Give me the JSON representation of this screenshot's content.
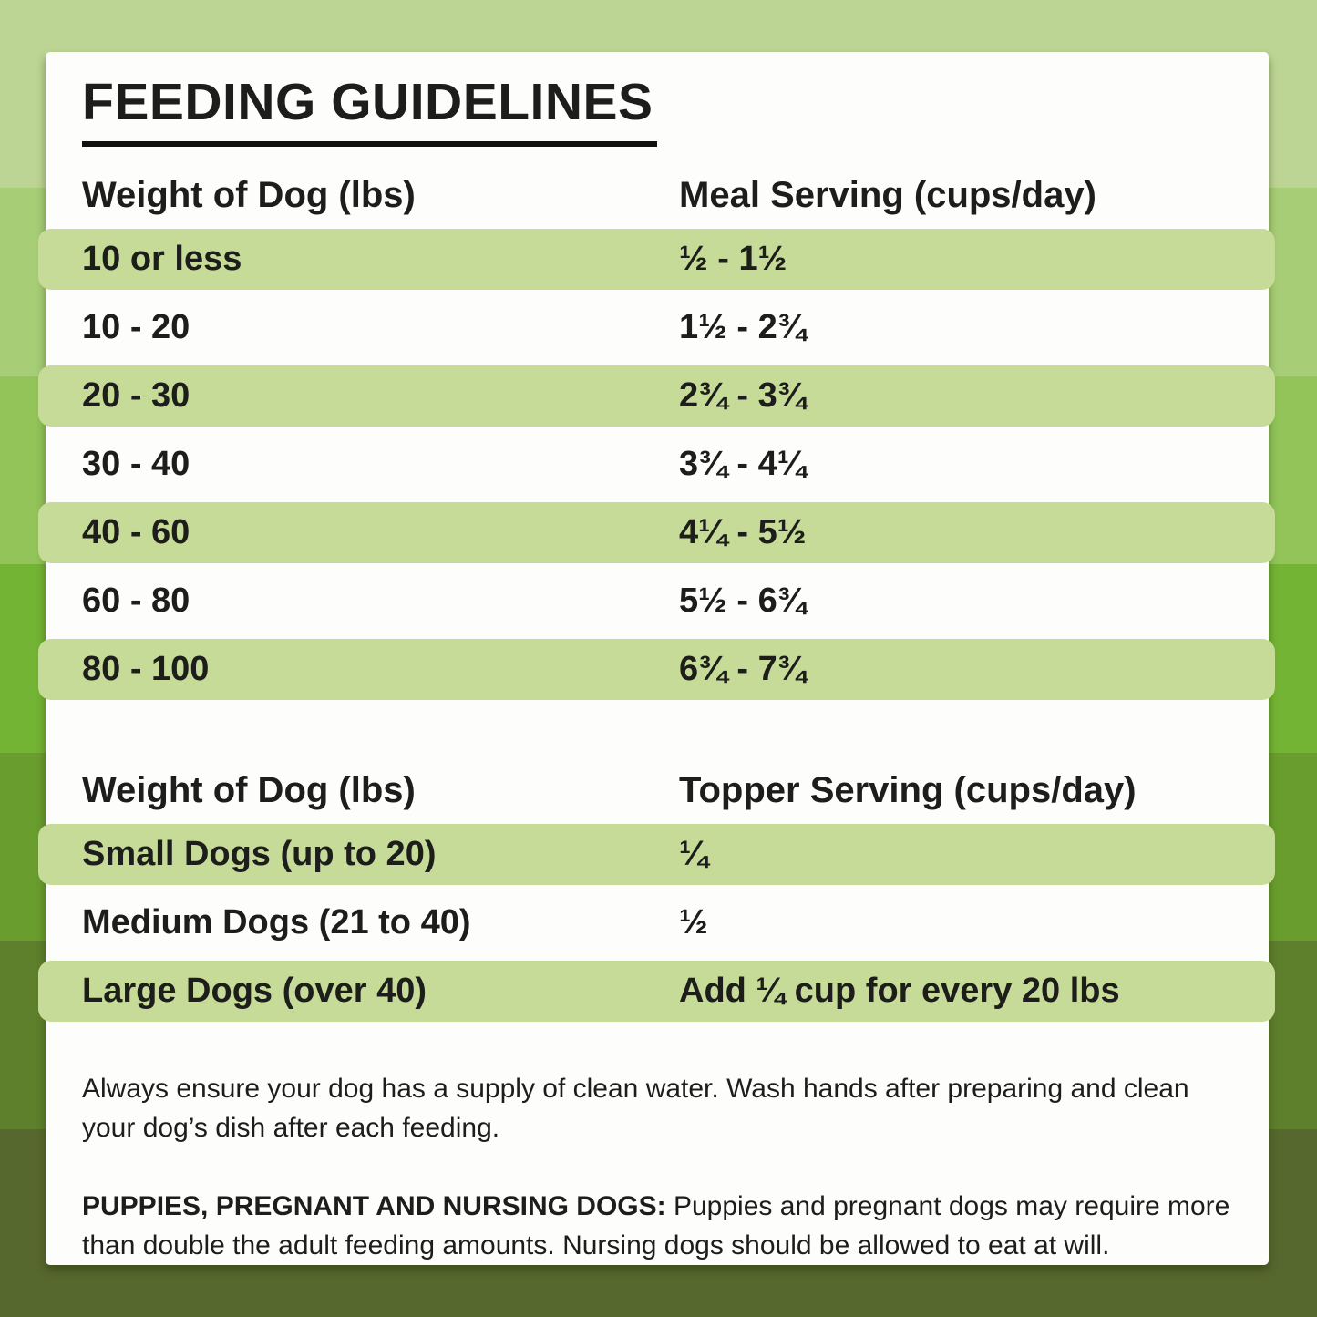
{
  "title": "FEEDING GUIDELINES",
  "meal_table": {
    "col1_header": "Weight of Dog (lbs)",
    "col2_header": "Meal Serving (cups/day)",
    "rows": [
      {
        "weight": "10 or less",
        "serving": "½ - 1½"
      },
      {
        "weight": "10 - 20",
        "serving": "1½ - 2¾"
      },
      {
        "weight": "20 - 30",
        "serving": "2¾ - 3¾"
      },
      {
        "weight": "30 - 40",
        "serving": "3¾ - 4¼"
      },
      {
        "weight": "40 - 60",
        "serving": "4¼ - 5½"
      },
      {
        "weight": "60 - 80",
        "serving": "5½ - 6¾"
      },
      {
        "weight": "80 - 100",
        "serving": "6¾ - 7¾"
      }
    ]
  },
  "topper_table": {
    "col1_header": "Weight of Dog (lbs)",
    "col2_header": "Topper Serving (cups/day)",
    "rows": [
      {
        "weight": "Small Dogs (up to 20)",
        "serving": "¼"
      },
      {
        "weight": "Medium Dogs (21 to 40)",
        "serving": "½"
      },
      {
        "weight": "Large Dogs (over 40)",
        "serving": "Add ¼ cup for every 20 lbs"
      }
    ]
  },
  "notes": {
    "water": "Always ensure your dog has a supply of clean water. Wash hands after preparing and clean your dog’s dish after each feeding.",
    "puppies_label": "PUPPIES, PREGNANT AND NURSING DOGS:",
    "puppies_text": "Puppies and pregnant dogs may require more than double the adult feeding amounts. Nursing dogs should be allowed to eat at will."
  },
  "colors": {
    "text": "#1d1d1b",
    "card_bg": "#fdfdfb",
    "title_underline": "#111111",
    "row_highlight": "#c6db97"
  },
  "background": {
    "bands": [
      "#bdd594",
      "#a7ce76",
      "#92c45a",
      "#73b434",
      "#699d2e",
      "#5e7f2c",
      "#57682e"
    ]
  }
}
